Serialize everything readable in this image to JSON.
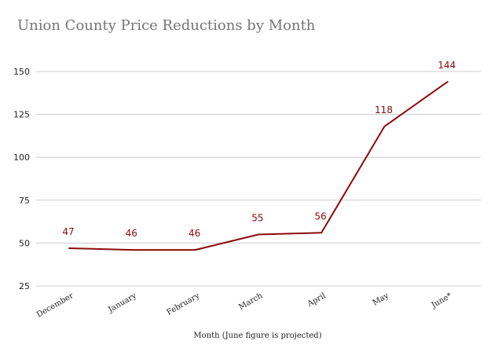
{
  "chart_data": {
    "type": "line",
    "title": "Union County Price Reductions by Month",
    "xlabel": "Month (June figure is projected)",
    "ylabel": "",
    "categories": [
      "December",
      "January",
      "February",
      "March",
      "April",
      "May",
      "June*"
    ],
    "series": [
      {
        "values": [
          47,
          46,
          46,
          55,
          56,
          118,
          144
        ]
      }
    ],
    "ylim": [
      25,
      150
    ],
    "yticks": [
      25,
      50,
      75,
      100,
      125,
      150
    ],
    "grid": true,
    "legend": "none",
    "line_color": "#8b0a0a",
    "grid_color": "#cccccc"
  }
}
